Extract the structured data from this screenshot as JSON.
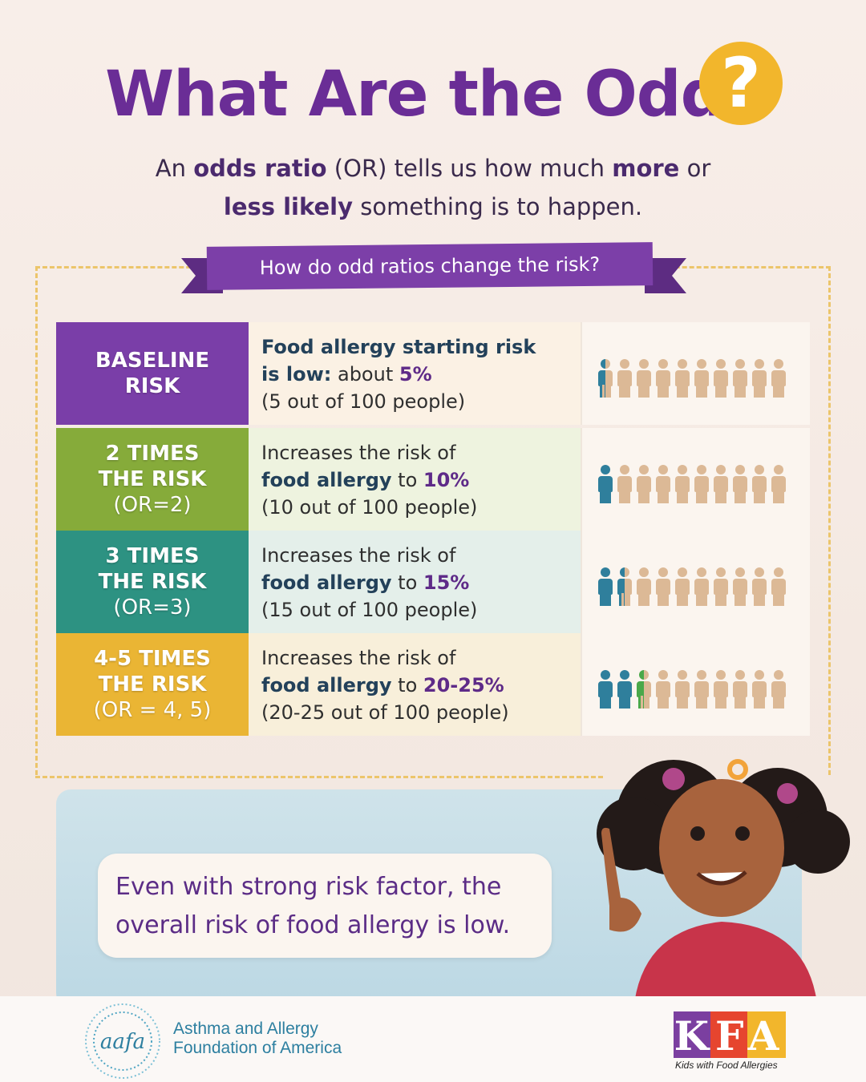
{
  "header": {
    "title": "What Are the Odds",
    "title_mark": "?",
    "subtitle_parts": [
      "An ",
      "odds ratio",
      " (OR) tells us how much ",
      "more",
      " or",
      "less likely",
      " something is to happen."
    ]
  },
  "ribbon": {
    "text": "How do odd ratios change the risk?"
  },
  "rows": [
    {
      "label_line1": "BASELINE",
      "label_line2": "RISK",
      "label_line3": "",
      "label_color": "#7a3ea8",
      "desc_line1_a": "Food allergy starting risk",
      "desc_line2_a": "is low:",
      "desc_line2_b": " about ",
      "desc_line2_c": "5%",
      "desc_line3": "(5 out of 100 people)",
      "risk_percent": 5
    },
    {
      "label_line1": "2 TIMES",
      "label_line2": "THE RISK",
      "label_line3": "(OR=2)",
      "label_color": "#86ab3a",
      "desc_line1_a": "Increases the risk of",
      "desc_line2_a": "food allergy",
      "desc_line2_b": " to ",
      "desc_line2_c": "10%",
      "desc_line3": "(10 out of 100 people)",
      "risk_percent": 10
    },
    {
      "label_line1": "3 TIMES",
      "label_line2": "THE RISK",
      "label_line3": "(OR=3)",
      "label_color": "#2d9282",
      "desc_line1_a": "Increases the risk of",
      "desc_line2_a": "food allergy",
      "desc_line2_b": " to ",
      "desc_line2_c": "15%",
      "desc_line3": "(15 out of 100 people)",
      "risk_percent": 15
    },
    {
      "label_line1": "4-5 TIMES",
      "label_line2": "THE RISK",
      "label_line3": "(OR = 4, 5)",
      "label_color": "#eab534",
      "desc_line1_a": "Increases the risk of",
      "desc_line2_a": "food allergy",
      "desc_line2_b": " to ",
      "desc_line2_c": "20-25%",
      "desc_line3": "(20-25 out of 100 people)",
      "risk_percent": 25
    }
  ],
  "callout": {
    "line1": "Even with strong risk factor, the",
    "line2": "overall risk of food allergy is low."
  },
  "footer": {
    "aafa_logo_text": "aafa",
    "aafa_line1": "Asthma and Allergy",
    "aafa_line2": "Foundation of America",
    "kfa_logo": "KFA",
    "kfa_tagline": "Kids with Food Allergies"
  },
  "icons": {
    "person": "person-icon",
    "question": "question-mark-icon"
  },
  "colors": {
    "title": "#6a2d96",
    "accent_yellow": "#f2b62c",
    "risk_blue": "#2f7f9c",
    "risk_green": "#4aa84a",
    "neutral_tan": "#dcb996"
  }
}
